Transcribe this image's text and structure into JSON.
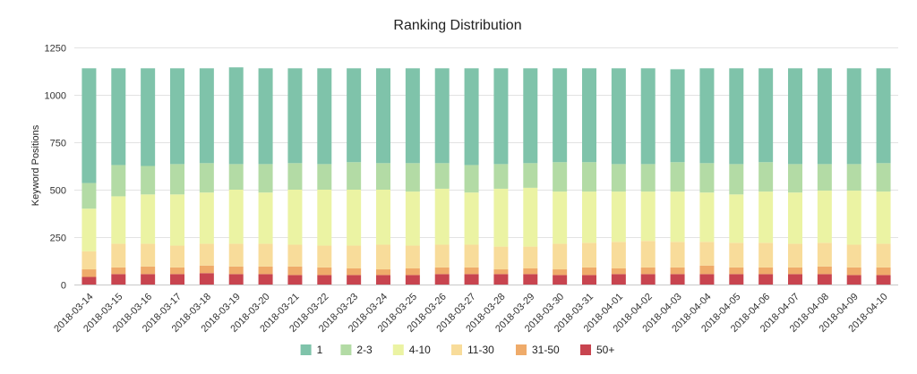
{
  "chart_data": {
    "type": "bar",
    "stacked": true,
    "title": "Ranking Distribution",
    "xlabel": "",
    "ylabel": "Keyword Positions",
    "ylim": [
      0,
      1250
    ],
    "yticks": [
      0,
      250,
      500,
      750,
      1000,
      1250
    ],
    "grid": true,
    "legend_position": "bottom",
    "categories": [
      "2018-03-14",
      "2018-03-15",
      "2018-03-16",
      "2018-03-17",
      "2018-03-18",
      "2018-03-19",
      "2018-03-20",
      "2018-03-21",
      "2018-03-22",
      "2018-03-23",
      "2018-03-24",
      "2018-03-25",
      "2018-03-26",
      "2018-03-27",
      "2018-03-28",
      "2018-03-29",
      "2018-03-30",
      "2018-03-31",
      "2018-04-01",
      "2018-04-02",
      "2018-04-03",
      "2018-04-04",
      "2018-04-05",
      "2018-04-06",
      "2018-04-07",
      "2018-04-08",
      "2018-04-09",
      "2018-04-10"
    ],
    "series": [
      {
        "name": "50+",
        "color": "#c8444f",
        "values": [
          40,
          55,
          55,
          55,
          60,
          55,
          55,
          50,
          50,
          50,
          50,
          50,
          55,
          55,
          55,
          55,
          50,
          50,
          55,
          55,
          55,
          55,
          55,
          55,
          55,
          55,
          50,
          50
        ]
      },
      {
        "name": "31-50",
        "color": "#efab6a",
        "values": [
          40,
          35,
          40,
          35,
          40,
          40,
          40,
          45,
          40,
          35,
          30,
          35,
          35,
          35,
          25,
          30,
          30,
          40,
          30,
          35,
          35,
          45,
          35,
          35,
          35,
          40,
          40,
          40
        ]
      },
      {
        "name": "11-30",
        "color": "#f8dc9a",
        "values": [
          95,
          125,
          120,
          115,
          115,
          120,
          120,
          115,
          115,
          120,
          130,
          120,
          120,
          120,
          120,
          115,
          135,
          130,
          140,
          140,
          135,
          125,
          130,
          130,
          125,
          125,
          120,
          125
        ]
      },
      {
        "name": "4-10",
        "color": "#ebf3a3",
        "values": [
          225,
          250,
          260,
          270,
          270,
          285,
          270,
          290,
          295,
          295,
          290,
          285,
          295,
          275,
          305,
          310,
          275,
          270,
          265,
          260,
          265,
          260,
          255,
          270,
          270,
          275,
          285,
          275
        ]
      },
      {
        "name": "2-3",
        "color": "#b3dba5",
        "values": [
          135,
          165,
          150,
          160,
          155,
          135,
          150,
          140,
          135,
          145,
          140,
          150,
          135,
          145,
          130,
          130,
          155,
          155,
          145,
          145,
          155,
          155,
          160,
          155,
          150,
          140,
          140,
          150
        ]
      },
      {
        "name": "1",
        "color": "#7fc3aa",
        "values": [
          605,
          510,
          515,
          505,
          500,
          510,
          505,
          500,
          505,
          495,
          500,
          500,
          500,
          510,
          505,
          500,
          495,
          495,
          505,
          505,
          490,
          500,
          505,
          495,
          505,
          505,
          505,
          500
        ]
      }
    ],
    "legend_order": [
      "1",
      "2-3",
      "4-10",
      "11-30",
      "31-50",
      "50+"
    ]
  }
}
